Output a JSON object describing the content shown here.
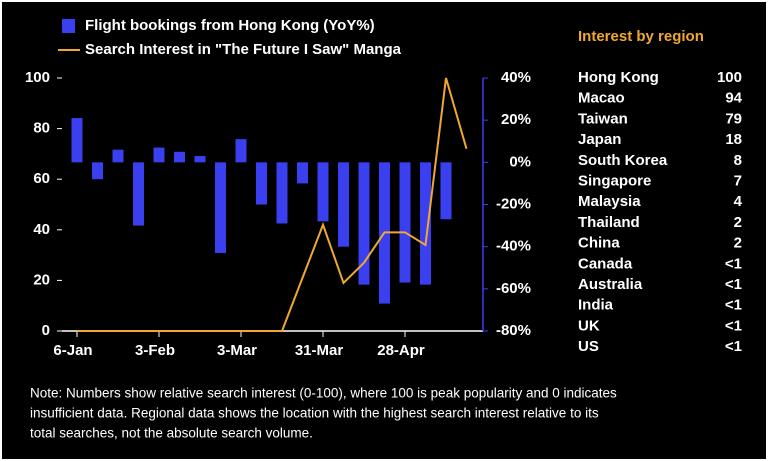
{
  "chart_data": {
    "type": "combo",
    "categories": [
      "6-Jan",
      null,
      null,
      null,
      "3-Feb",
      null,
      null,
      null,
      "3-Mar",
      null,
      null,
      null,
      "31-Mar",
      null,
      null,
      null,
      "28-Apr",
      null,
      null,
      null
    ],
    "series": [
      {
        "name": "Flight bookings from Hong Kong (YoY%)",
        "type": "bar",
        "axis": "y2",
        "color": "#3a3ff0",
        "values": [
          21,
          -8,
          6,
          -30,
          7,
          5,
          3,
          -43,
          11,
          -20,
          -29,
          -10,
          -28,
          -40,
          -58,
          -67,
          -57,
          -58,
          -27,
          null
        ]
      },
      {
        "name": "Search Interest in \"The Future I Saw\" Manga",
        "type": "line",
        "axis": "y",
        "color": "#f0a830",
        "values": [
          0,
          0,
          0,
          0,
          0,
          0,
          0,
          0,
          0,
          0,
          0,
          21,
          42,
          19,
          27,
          39,
          39,
          34,
          100,
          72
        ]
      }
    ],
    "ylim": [
      0,
      100
    ],
    "yticks": [
      0,
      20,
      40,
      60,
      80,
      100
    ],
    "y2lim": [
      -80,
      40
    ],
    "y2ticks": [
      {
        "value": -80,
        "label": "-80%"
      },
      {
        "value": -60,
        "label": "-60%"
      },
      {
        "value": -40,
        "label": "-40%"
      },
      {
        "value": -20,
        "label": "-20%"
      },
      {
        "value": 0,
        "label": "0%"
      },
      {
        "value": 20,
        "label": "20%"
      },
      {
        "value": 40,
        "label": "40%"
      }
    ],
    "legend": "top-left"
  },
  "region_table": {
    "title": "Interest by region",
    "rows": [
      [
        "Hong Kong",
        "100"
      ],
      [
        "Macao",
        "94"
      ],
      [
        "Taiwan",
        "79"
      ],
      [
        "Japan",
        "18"
      ],
      [
        "South Korea",
        "8"
      ],
      [
        "Singapore",
        "7"
      ],
      [
        "Malaysia",
        "4"
      ],
      [
        "Thailand",
        "2"
      ],
      [
        "China",
        "2"
      ],
      [
        "Canada",
        "<1"
      ],
      [
        "Australia",
        "<1"
      ],
      [
        "India",
        "<1"
      ],
      [
        "UK",
        "<1"
      ],
      [
        "US",
        "<1"
      ]
    ]
  },
  "note": [
    "Note: Numbers show relative search interest (0-100), where 100 is peak popularity and 0 indicates",
    "insufficient data. Regional data shows the location with the highest search interest relative to its",
    "total searches, not the absolute search volume."
  ]
}
